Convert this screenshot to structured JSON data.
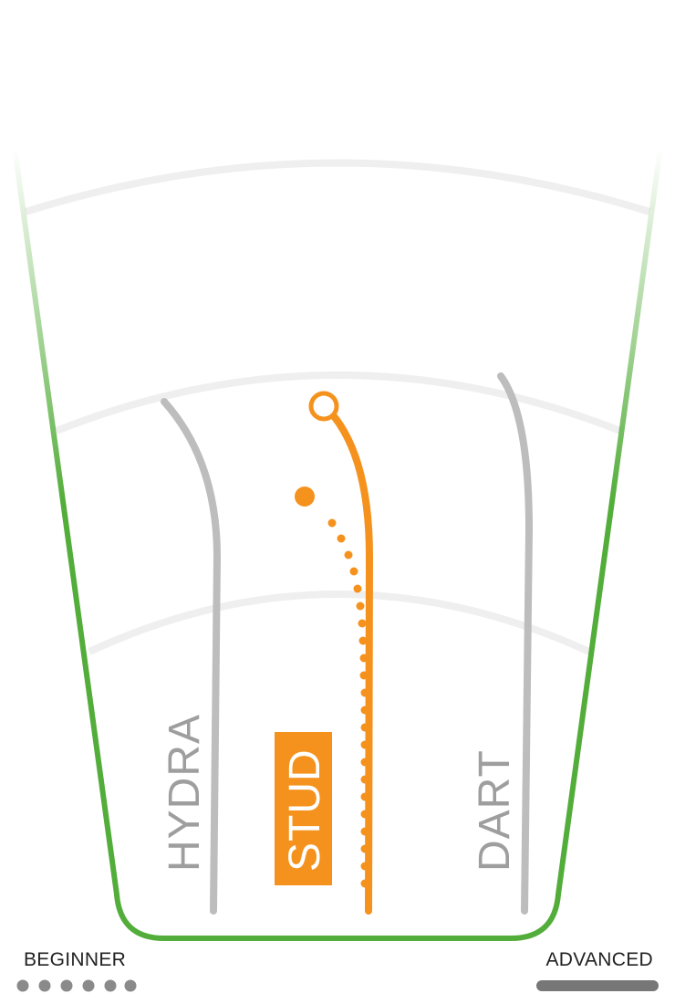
{
  "colors": {
    "accent": "#f5921e",
    "lane": "#bdbdbd",
    "lane_label": "#9e9e9e",
    "boundary": "#53ad3a",
    "arc": "#efefef",
    "scale_dots": "#8a8a8a",
    "scale_bar": "#777777"
  },
  "lanes": [
    {
      "name": "HYDRA",
      "highlighted": false
    },
    {
      "name": "STUD",
      "highlighted": true
    },
    {
      "name": "DART",
      "highlighted": false
    }
  ],
  "scale": {
    "min_label": "BEGINNER",
    "max_label": "ADVANCED"
  },
  "icons": {
    "start_marker": "hollow-circle-icon",
    "end_marker": "filled-dot-icon"
  }
}
